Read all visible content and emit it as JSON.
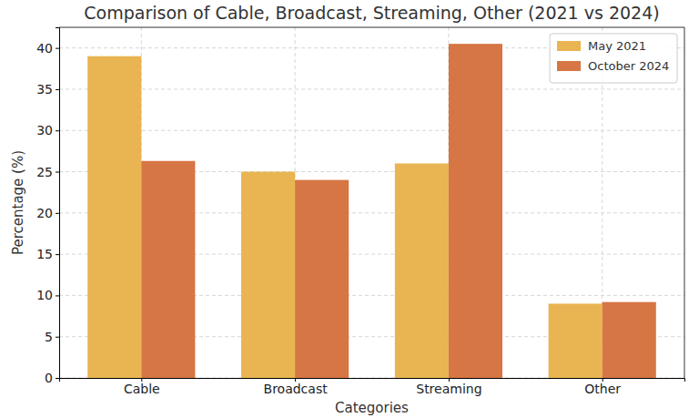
{
  "chart_data": {
    "type": "bar",
    "title": "Comparison of Cable, Broadcast, Streaming, Other (2021 vs 2024)",
    "x_label": "Categories",
    "y_label": "Percentage (%)",
    "categories": [
      "Cable",
      "Broadcast",
      "Streaming",
      "Other"
    ],
    "series": [
      {
        "name": "May 2021",
        "color": "#e9b552",
        "values": [
          39,
          25,
          26,
          9
        ]
      },
      {
        "name": "October 2024",
        "color": "#d67644",
        "values": [
          26.3,
          24,
          40.5,
          9.2
        ]
      }
    ],
    "ylim": [
      0,
      42.5
    ],
    "yticks": [
      0,
      5,
      10,
      15,
      20,
      25,
      30,
      35,
      40
    ],
    "grid": true,
    "legend": "upper right"
  }
}
